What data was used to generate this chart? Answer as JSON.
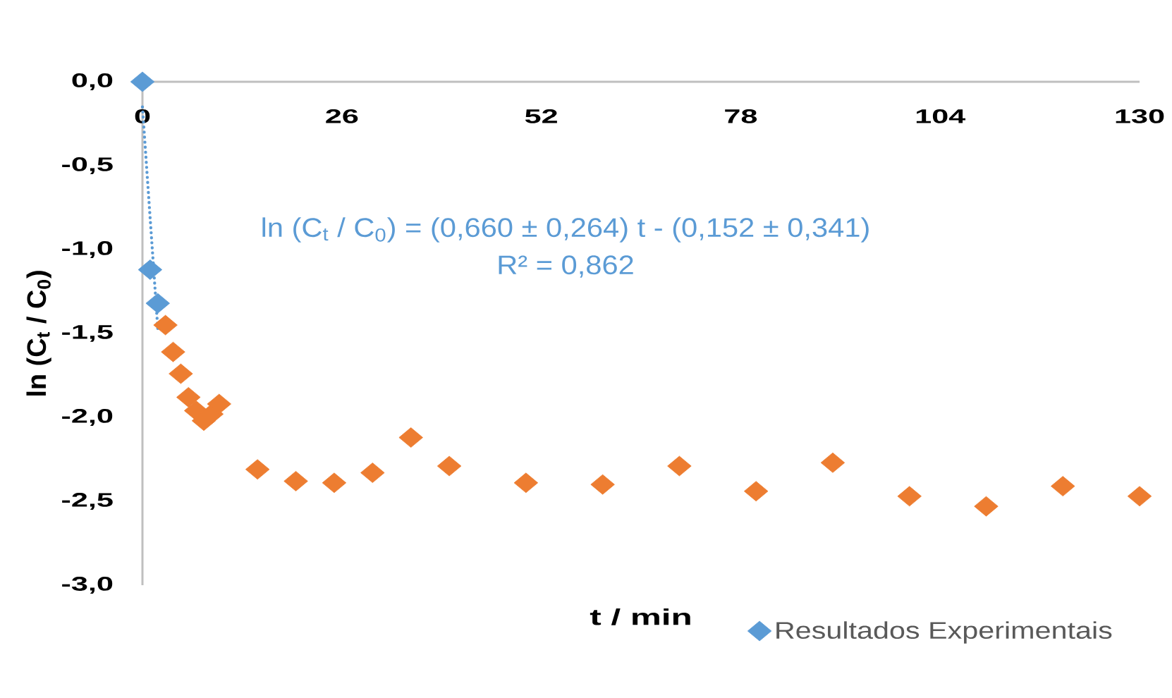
{
  "chart_data": {
    "type": "scatter",
    "xlabel": "t / min",
    "ylabel": "ln (C$_{t}$ / C$_{0}$)",
    "annotations": [
      "ln (C$_{t}$ / C$_{0}$) = (0,660 ± 0,264) t - (0,152 ± 0,341)",
      "R² = 0,862"
    ],
    "xlim": [
      0,
      130
    ],
    "ylim": [
      -3,
      0
    ],
    "xticks": [
      0,
      26,
      52,
      78,
      104,
      130
    ],
    "yticks": [
      {
        "value": -3,
        "label": "-3,0"
      },
      {
        "value": -2.5,
        "label": "-2,5"
      },
      {
        "value": -2,
        "label": "-2,0"
      },
      {
        "value": -1.5,
        "label": "-1,5"
      },
      {
        "value": -1,
        "label": "-1,0"
      },
      {
        "value": -0.5,
        "label": "-0,5"
      },
      {
        "value": 0,
        "label": "0,0"
      }
    ],
    "marker": "diamond",
    "legend": "bottom right",
    "series": [
      {
        "name": "Resultados Experimentais",
        "color": "#5b9bd5",
        "x": [
          0,
          1,
          2
        ],
        "values": [
          0,
          -1.12,
          -1.32
        ]
      },
      {
        "color": "#ed7d31",
        "x": [
          3,
          4,
          5,
          6,
          7,
          8,
          9,
          10,
          15,
          20,
          25,
          30,
          35,
          40,
          50,
          60,
          70,
          80,
          90,
          100,
          110,
          120,
          130
        ],
        "values": [
          -1.45,
          -1.61,
          -1.74,
          -1.88,
          -1.96,
          -2.02,
          -1.98,
          -1.92,
          -2.31,
          -2.38,
          -2.39,
          -2.33,
          -2.12,
          -2.29,
          -2.39,
          -2.4,
          -2.29,
          -2.44,
          -2.27,
          -2.47,
          -2.53,
          -2.41,
          -2.47
        ]
      },
      {
        "type": "line",
        "color": "#5b9bd5",
        "x": [
          0,
          2
        ],
        "values": [
          -0.15,
          -1.47
        ],
        "marker": "none",
        "line_style": "dotted"
      }
    ]
  }
}
